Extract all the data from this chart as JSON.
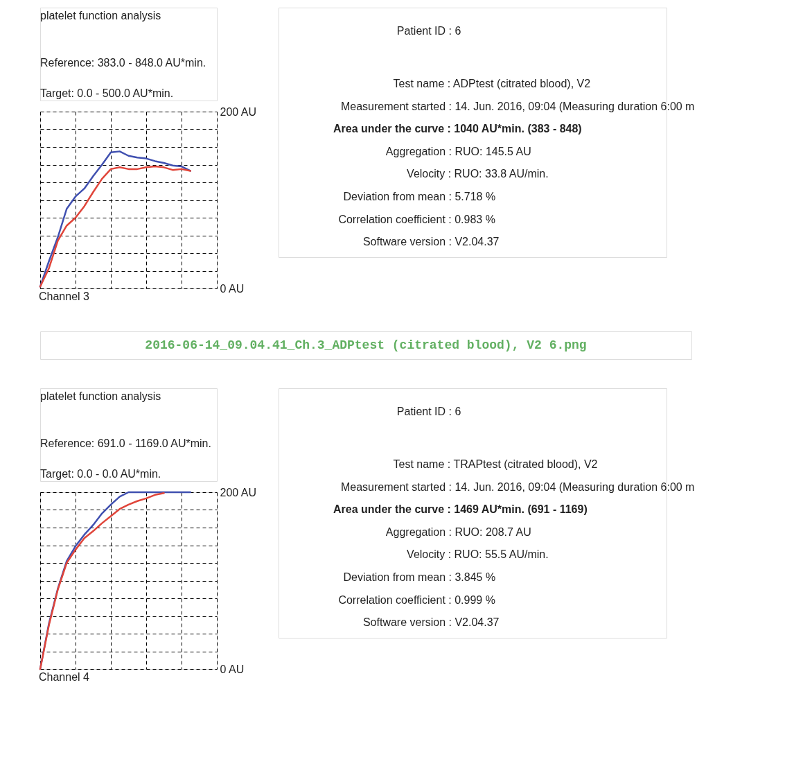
{
  "chart_data": [
    {
      "type": "other",
      "title": "platelet function analysis",
      "annotations": [
        "Reference: 383.0 - 848.0 AU*min.",
        "Target: 0.0 - 500.0 AU*min."
      ]
    },
    {
      "type": "line",
      "categories": [
        null,
        null,
        null,
        null,
        null,
        null,
        null,
        null,
        null,
        null,
        null,
        null,
        null,
        null,
        null,
        null,
        null,
        null
      ],
      "ylim": [
        0,
        200
      ],
      "yticks": [
        {
          "value": 0,
          "label": "0 AU"
        },
        {
          "value": 20,
          "label": null
        },
        {
          "value": 40,
          "label": null
        },
        {
          "value": 60,
          "label": null
        },
        {
          "value": 80,
          "label": null
        },
        {
          "value": 100,
          "label": null
        },
        {
          "value": 120,
          "label": null
        },
        {
          "value": 140,
          "label": null
        },
        {
          "value": 160,
          "label": null
        },
        {
          "value": 180,
          "label": null
        },
        {
          "value": 200,
          "label": "200 AU"
        }
      ],
      "grid": true,
      "tick_labels": "y",
      "annotations": [
        "Channel 3"
      ],
      "series": [
        {
          "color": "#4050b0",
          "values": [
            2,
            31,
            58,
            90,
            104,
            113,
            127,
            140,
            154,
            155,
            150,
            148,
            147,
            144,
            142,
            139,
            138,
            133
          ]
        },
        {
          "color": "#e0453a",
          "values": [
            2,
            23,
            54,
            71,
            80,
            93,
            109,
            124,
            135,
            137,
            135,
            135,
            137,
            138,
            137,
            134,
            135,
            133
          ]
        }
      ]
    },
    {
      "type": "other",
      "annotations": [
        "Patient ID : 6",
        "Test name : ADPtest (citrated blood), V2",
        "Measurement started : 14. Jun. 2016, 09:04 (Measuring duration 6:00 m",
        "Area under the curve : 1040 AU*min. (383 - 848)",
        "Aggregation : RUO: 145.5 AU",
        "Velocity : RUO: 33.8 AU/min.",
        "Deviation from mean : 5.718 %",
        "Correlation coefficient : 0.983 %",
        "Software version : V2.04.37"
      ]
    },
    {
      "type": "other",
      "annotations": [
        "2016-06-14_09.04.41_Ch.3_ADPtest (citrated blood), V2 6.png"
      ]
    },
    {
      "type": "other",
      "title": "platelet function analysis",
      "annotations": [
        "Reference: 691.0 - 1169.0 AU*min.",
        "Target: 0.0 - 0.0 AU*min."
      ]
    },
    {
      "type": "line",
      "categories": [
        null,
        null,
        null,
        null,
        null,
        null,
        null,
        null,
        null,
        null,
        null,
        null,
        null,
        null,
        null,
        null,
        null,
        null
      ],
      "ylim": [
        0,
        200
      ],
      "yticks": [
        {
          "value": 0,
          "label": "0 AU"
        },
        {
          "value": 20,
          "label": null
        },
        {
          "value": 40,
          "label": null
        },
        {
          "value": 60,
          "label": null
        },
        {
          "value": 80,
          "label": null
        },
        {
          "value": 100,
          "label": null
        },
        {
          "value": 120,
          "label": null
        },
        {
          "value": 140,
          "label": null
        },
        {
          "value": 160,
          "label": null
        },
        {
          "value": 180,
          "label": null
        },
        {
          "value": 200,
          "label": "200 AU"
        }
      ],
      "grid": true,
      "tick_labels": "y",
      "annotations": [
        "Channel 4"
      ],
      "series": [
        {
          "color": "#4050b0",
          "values": [
            0,
            52,
            91,
            122,
            139,
            152,
            163,
            176,
            186,
            195,
            200,
            200,
            200,
            200,
            200,
            200,
            200,
            200
          ]
        },
        {
          "color": "#e0453a",
          "values": [
            0,
            50,
            90,
            120,
            135,
            148,
            156,
            165,
            173,
            181,
            186,
            190,
            193,
            197,
            199,
            null,
            null,
            null
          ]
        }
      ]
    },
    {
      "type": "other",
      "annotations": [
        "Patient ID : 6",
        "Test name : TRAPtest (citrated blood), V2",
        "Measurement started : 14. Jun. 2016, 09:04 (Measuring duration 6:00 m",
        "Area under the curve : 1469 AU*min. (691 - 1169)",
        "Aggregation : RUO: 208.7 AU",
        "Velocity : RUO: 55.5 AU/min.",
        "Deviation from mean : 3.845 %",
        "Correlation coefficient : 0.999 %",
        "Software version : V2.04.37"
      ]
    }
  ]
}
